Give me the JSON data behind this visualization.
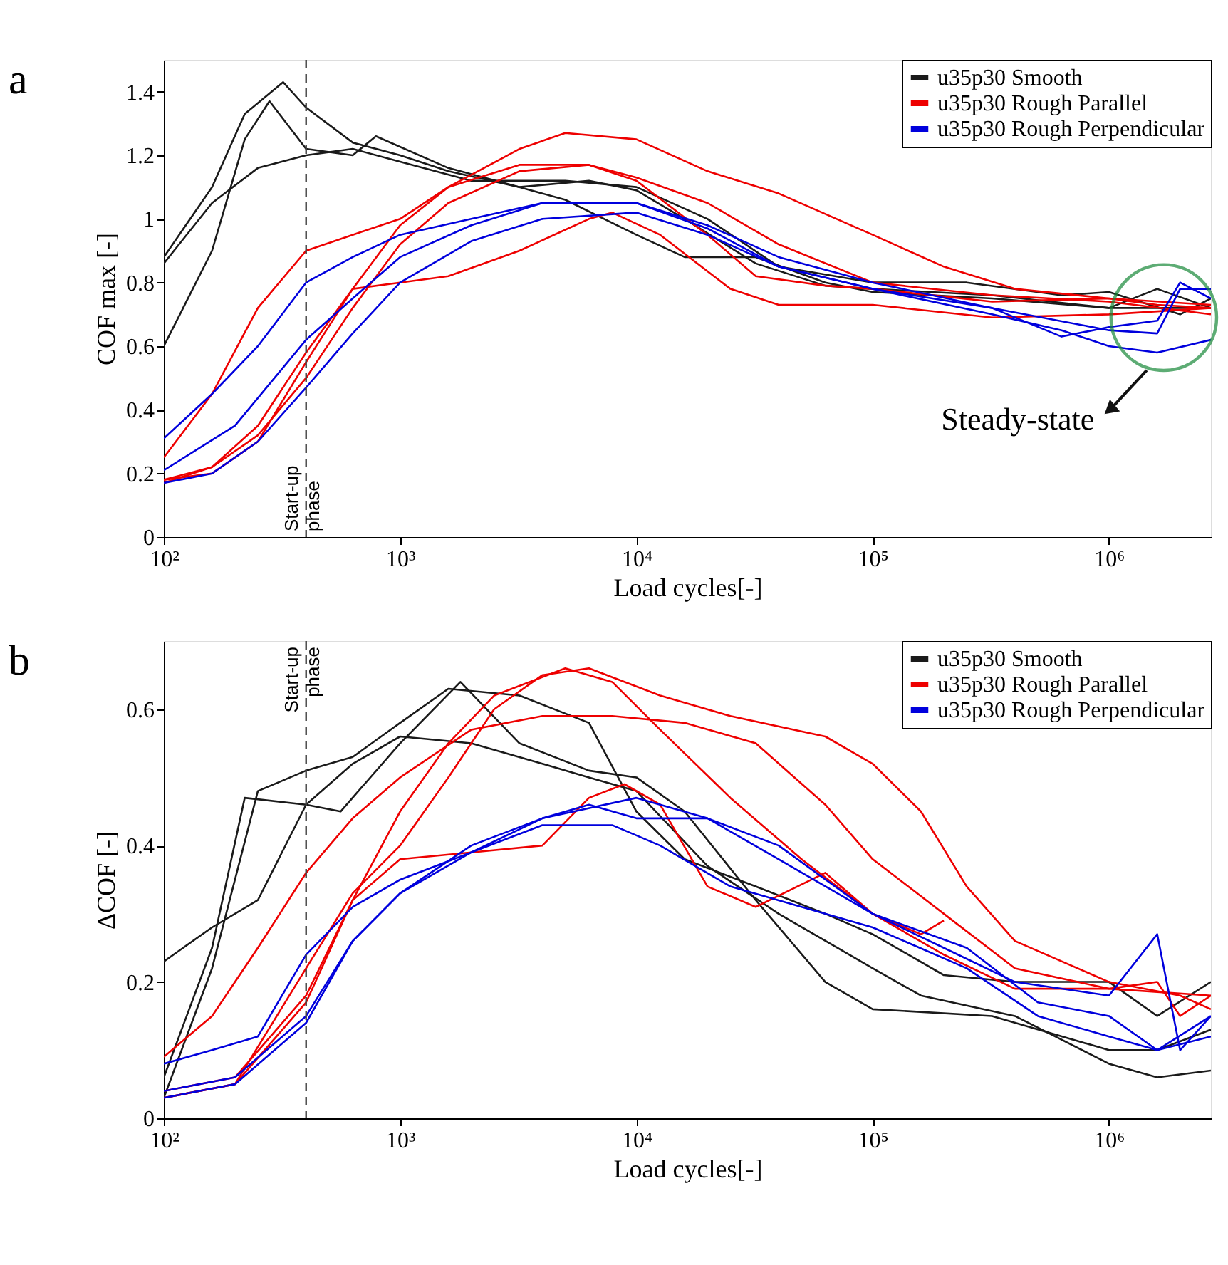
{
  "chart_data": [
    {
      "type": "line",
      "title": "a",
      "xlabel": "Load cycles[-]",
      "ylabel": "COF max [-]",
      "log": "x",
      "legend": "top right",
      "grid": false,
      "line_style": "solid",
      "marker": "none",
      "xlim": [
        100,
        2700000
      ],
      "xticks": [
        {
          "value": 100,
          "label": "10²"
        },
        {
          "value": 1000,
          "label": "10³"
        },
        {
          "value": 10000,
          "label": "10⁴"
        },
        {
          "value": 100000,
          "label": "10⁵"
        },
        {
          "value": 1000000,
          "label": "10⁶"
        }
      ],
      "ylim": [
        0,
        1.5
      ],
      "yticks": [
        0,
        0.2,
        0.4,
        0.6,
        0.8,
        1,
        1.2,
        1.4
      ],
      "ref_lines": [
        {
          "axis": "x",
          "value": 400,
          "label": "Start-up phase",
          "line_style": "dashed"
        }
      ],
      "annotations": [
        "Steady-state"
      ],
      "series": [
        {
          "name": "u35p30 Smooth",
          "color": "#1a1a1a",
          "x": [
            100,
            160,
            220,
            320,
            400,
            630,
            1000,
            1600,
            3200,
            6300,
            10000,
            16000,
            32000,
            63000,
            100000,
            320000,
            1000000,
            2000000,
            2700000
          ],
          "values": [
            0.88,
            1.1,
            1.33,
            1.43,
            1.35,
            1.24,
            1.2,
            1.15,
            1.1,
            1.12,
            1.09,
            1.0,
            0.86,
            0.79,
            0.78,
            0.76,
            0.72,
            0.72,
            0.72
          ]
        },
        {
          "color": "#1a1a1a",
          "x": [
            100,
            160,
            220,
            280,
            400,
            630,
            790,
            1600,
            3200,
            5000,
            10000,
            16000,
            32000,
            63000,
            100000,
            320000,
            1000000,
            1600000,
            2700000
          ],
          "values": [
            0.6,
            0.9,
            1.25,
            1.37,
            1.22,
            1.2,
            1.26,
            1.16,
            1.1,
            1.06,
            0.95,
            0.88,
            0.88,
            0.8,
            0.77,
            0.75,
            0.72,
            0.78,
            0.72
          ]
        },
        {
          "color": "#1a1a1a",
          "x": [
            100,
            160,
            250,
            400,
            630,
            1000,
            2000,
            5000,
            10000,
            20000,
            40000,
            100000,
            250000,
            630000,
            1000000,
            2000000,
            2700000
          ],
          "values": [
            0.86,
            1.05,
            1.16,
            1.2,
            1.22,
            1.18,
            1.12,
            1.12,
            1.1,
            1.0,
            0.85,
            0.8,
            0.8,
            0.76,
            0.77,
            0.7,
            0.75
          ]
        },
        {
          "name": "u35p30 Rough Parallel",
          "color": "#ee0000",
          "x": [
            100,
            160,
            250,
            400,
            630,
            1000,
            1600,
            3200,
            5000,
            10000,
            20000,
            40000,
            100000,
            200000,
            400000,
            1000000,
            1600000,
            2700000
          ],
          "values": [
            0.25,
            0.45,
            0.72,
            0.9,
            0.95,
            1.0,
            1.1,
            1.22,
            1.27,
            1.25,
            1.15,
            1.08,
            0.95,
            0.85,
            0.78,
            0.75,
            0.73,
            0.72
          ]
        },
        {
          "color": "#ee0000",
          "x": [
            100,
            160,
            250,
            400,
            630,
            1000,
            1600,
            3200,
            6300,
            10000,
            20000,
            40000,
            100000,
            320000,
            1000000,
            2700000
          ],
          "values": [
            0.18,
            0.2,
            0.3,
            0.55,
            0.78,
            0.98,
            1.1,
            1.17,
            1.17,
            1.13,
            1.05,
            0.92,
            0.8,
            0.76,
            0.74,
            0.7
          ]
        },
        {
          "color": "#ee0000",
          "x": [
            100,
            160,
            250,
            400,
            630,
            1000,
            1600,
            3200,
            6300,
            10000,
            20000,
            32000,
            63000,
            100000,
            320000,
            1000000,
            2700000
          ],
          "values": [
            0.17,
            0.22,
            0.32,
            0.5,
            0.72,
            0.92,
            1.05,
            1.15,
            1.17,
            1.12,
            0.95,
            0.82,
            0.79,
            0.78,
            0.74,
            0.75,
            0.73
          ]
        },
        {
          "color": "#ee0000",
          "x": [
            100,
            160,
            250,
            400,
            630,
            1000,
            1600,
            3200,
            6300,
            7900,
            12600,
            25000,
            40000,
            100000,
            320000,
            1000000,
            2700000
          ],
          "values": [
            0.18,
            0.22,
            0.35,
            0.58,
            0.78,
            0.8,
            0.82,
            0.9,
            1.0,
            1.02,
            0.95,
            0.78,
            0.73,
            0.73,
            0.69,
            0.7,
            0.72
          ]
        },
        {
          "name": "u35p30 Rough Perpendicular",
          "color": "#0000dd",
          "x": [
            100,
            160,
            250,
            400,
            630,
            1000,
            2000,
            4000,
            6300,
            10000,
            20000,
            40000,
            100000,
            320000,
            630000,
            1000000,
            1600000,
            2000000,
            2700000
          ],
          "values": [
            0.31,
            0.45,
            0.6,
            0.8,
            0.88,
            0.95,
            1.0,
            1.05,
            1.05,
            1.05,
            0.97,
            0.85,
            0.78,
            0.72,
            0.63,
            0.66,
            0.68,
            0.8,
            0.75
          ]
        },
        {
          "color": "#0000dd",
          "x": [
            100,
            200,
            400,
            630,
            1000,
            2000,
            4000,
            10000,
            20000,
            40000,
            100000,
            320000,
            1000000,
            1600000,
            2000000,
            2700000
          ],
          "values": [
            0.21,
            0.35,
            0.62,
            0.75,
            0.88,
            0.98,
            1.05,
            1.05,
            0.98,
            0.88,
            0.8,
            0.72,
            0.65,
            0.64,
            0.78,
            0.78
          ]
        },
        {
          "color": "#0000dd",
          "x": [
            100,
            160,
            250,
            400,
            630,
            1000,
            2000,
            4000,
            10000,
            20000,
            40000,
            100000,
            320000,
            630000,
            1000000,
            1600000,
            2700000
          ],
          "values": [
            0.17,
            0.2,
            0.3,
            0.47,
            0.64,
            0.8,
            0.93,
            1.0,
            1.02,
            0.95,
            0.85,
            0.78,
            0.7,
            0.65,
            0.6,
            0.58,
            0.62
          ]
        }
      ]
    },
    {
      "type": "line",
      "title": "b",
      "xlabel": "Load cycles[-]",
      "ylabel": "ΔCOF [-]",
      "log": "x",
      "legend": "top right",
      "grid": false,
      "line_style": "solid",
      "marker": "none",
      "xlim": [
        100,
        2700000
      ],
      "xticks": [
        {
          "value": 100,
          "label": "10²"
        },
        {
          "value": 1000,
          "label": "10³"
        },
        {
          "value": 10000,
          "label": "10⁴"
        },
        {
          "value": 100000,
          "label": "10⁵"
        },
        {
          "value": 1000000,
          "label": "10⁶"
        }
      ],
      "ylim": [
        0,
        0.7
      ],
      "yticks": [
        0,
        0.2,
        0.4,
        0.6
      ],
      "ref_lines": [
        {
          "axis": "x",
          "value": 400,
          "label": "Start-up phase",
          "line_style": "dashed"
        }
      ],
      "series": [
        {
          "name": "u35p30 Smooth",
          "color": "#1a1a1a",
          "x": [
            100,
            160,
            250,
            400,
            630,
            1000,
            1600,
            3200,
            6300,
            10000,
            16000,
            32000,
            63000,
            100000,
            200000,
            400000,
            1000000,
            1600000,
            2700000
          ],
          "values": [
            0.03,
            0.22,
            0.48,
            0.51,
            0.53,
            0.58,
            0.63,
            0.62,
            0.58,
            0.45,
            0.38,
            0.34,
            0.3,
            0.27,
            0.21,
            0.2,
            0.2,
            0.15,
            0.2
          ]
        },
        {
          "color": "#1a1a1a",
          "x": [
            100,
            160,
            220,
            400,
            560,
            1000,
            1800,
            3200,
            6300,
            10000,
            16000,
            32000,
            63000,
            100000,
            320000,
            1000000,
            1600000,
            2700000
          ],
          "values": [
            0.06,
            0.25,
            0.47,
            0.46,
            0.45,
            0.55,
            0.64,
            0.55,
            0.51,
            0.5,
            0.45,
            0.32,
            0.2,
            0.16,
            0.15,
            0.1,
            0.1,
            0.13
          ]
        },
        {
          "color": "#1a1a1a",
          "x": [
            100,
            160,
            250,
            400,
            630,
            1000,
            2000,
            4000,
            6300,
            10000,
            20000,
            40000,
            100000,
            160000,
            400000,
            1000000,
            1600000,
            2700000
          ],
          "values": [
            0.23,
            0.28,
            0.32,
            0.46,
            0.52,
            0.56,
            0.55,
            0.52,
            0.5,
            0.48,
            0.37,
            0.3,
            0.22,
            0.18,
            0.15,
            0.08,
            0.06,
            0.07
          ]
        },
        {
          "name": "u35p30 Rough Parallel",
          "color": "#ee0000",
          "x": [
            100,
            160,
            250,
            400,
            630,
            1000,
            2000,
            4000,
            7900,
            16000,
            32000,
            63000,
            100000,
            200000,
            400000,
            1000000,
            2700000
          ],
          "values": [
            0.09,
            0.15,
            0.25,
            0.36,
            0.44,
            0.5,
            0.57,
            0.59,
            0.59,
            0.58,
            0.55,
            0.46,
            0.38,
            0.3,
            0.22,
            0.19,
            0.18
          ]
        },
        {
          "color": "#ee0000",
          "x": [
            100,
            200,
            400,
            630,
            1000,
            1600,
            2500,
            4000,
            6300,
            12600,
            25000,
            63000,
            100000,
            160000,
            250000,
            400000,
            1000000,
            2000000,
            2700000
          ],
          "values": [
            0.03,
            0.05,
            0.22,
            0.33,
            0.4,
            0.5,
            0.6,
            0.65,
            0.66,
            0.62,
            0.59,
            0.56,
            0.52,
            0.45,
            0.34,
            0.26,
            0.2,
            0.18,
            0.16
          ]
        },
        {
          "color": "#ee0000",
          "x": [
            100,
            200,
            400,
            630,
            1000,
            1600,
            2500,
            5000,
            7900,
            12600,
            25000,
            50000,
            100000,
            160000,
            200000
          ],
          "values": [
            0.04,
            0.06,
            0.18,
            0.32,
            0.45,
            0.55,
            0.62,
            0.66,
            0.64,
            0.57,
            0.47,
            0.38,
            0.3,
            0.27,
            0.29
          ]
        },
        {
          "color": "#ee0000",
          "x": [
            100,
            200,
            400,
            630,
            1000,
            2000,
            4000,
            6300,
            8900,
            12600,
            20000,
            32000,
            63000,
            100000,
            200000,
            400000,
            1000000,
            1600000,
            2000000,
            2700000
          ],
          "values": [
            0.03,
            0.05,
            0.17,
            0.32,
            0.38,
            0.39,
            0.4,
            0.47,
            0.49,
            0.46,
            0.34,
            0.31,
            0.36,
            0.3,
            0.24,
            0.19,
            0.19,
            0.2,
            0.15,
            0.18
          ]
        },
        {
          "name": "u35p30 Rough Perpendicular",
          "color": "#0000dd",
          "x": [
            100,
            160,
            250,
            400,
            630,
            1000,
            2000,
            4000,
            10000,
            20000,
            40000,
            100000,
            200000,
            400000,
            1000000,
            1600000,
            2000000,
            2700000
          ],
          "values": [
            0.08,
            0.1,
            0.12,
            0.24,
            0.31,
            0.35,
            0.39,
            0.44,
            0.47,
            0.44,
            0.4,
            0.3,
            0.25,
            0.2,
            0.18,
            0.27,
            0.1,
            0.15
          ]
        },
        {
          "color": "#0000dd",
          "x": [
            100,
            200,
            400,
            630,
            1000,
            2000,
            4000,
            6300,
            10000,
            20000,
            40000,
            100000,
            250000,
            500000,
            1000000,
            1600000,
            2700000
          ],
          "values": [
            0.03,
            0.05,
            0.14,
            0.26,
            0.33,
            0.4,
            0.44,
            0.46,
            0.44,
            0.44,
            0.38,
            0.3,
            0.25,
            0.17,
            0.15,
            0.1,
            0.12
          ]
        },
        {
          "color": "#0000dd",
          "x": [
            100,
            200,
            400,
            630,
            1000,
            2000,
            4000,
            7900,
            12600,
            25000,
            50000,
            100000,
            250000,
            500000,
            1000000,
            1600000,
            2700000
          ],
          "values": [
            0.04,
            0.06,
            0.15,
            0.26,
            0.33,
            0.39,
            0.43,
            0.43,
            0.4,
            0.34,
            0.31,
            0.28,
            0.22,
            0.15,
            0.12,
            0.1,
            0.15
          ]
        }
      ]
    }
  ]
}
